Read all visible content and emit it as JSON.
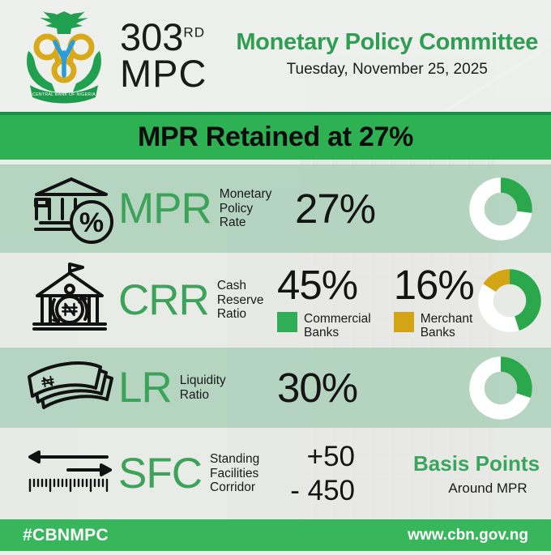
{
  "header": {
    "logo_ribbon": "CENTRAL BANK OF NIGERIA",
    "edition_number": "303",
    "edition_suffix": "RD",
    "edition_label": "MPC",
    "title": "Monetary Policy Committee",
    "date": "Tuesday, November 25, 2025"
  },
  "banner": {
    "text": "MPR Retained at 27%"
  },
  "rows": [
    {
      "acronym": "MPR",
      "label_lines": [
        "Monetary",
        "Policy",
        "Rate"
      ],
      "value": "27%",
      "icon": "bank-percent-icon"
    },
    {
      "acronym": "CRR",
      "label_lines": [
        "Cash",
        "Reserve",
        "Ratio"
      ],
      "items": [
        {
          "value": "45%",
          "legend_lines": [
            "Commercial",
            "Banks"
          ],
          "color": "#2fae55"
        },
        {
          "value": "16%",
          "legend_lines": [
            "Merchant",
            "Banks"
          ],
          "color": "#d3a413"
        }
      ],
      "icon": "bank-naira-cycle-icon"
    },
    {
      "acronym": "LR",
      "label_lines": [
        "Liquidity",
        "Ratio"
      ],
      "value": "30%",
      "icon": "banknotes-icon"
    },
    {
      "acronym": "SFC",
      "label_lines": [
        "Standing",
        "Facilities",
        "Corridor"
      ],
      "upper_value": "+50",
      "lower_value": "- 450",
      "note_title": "Basis Points",
      "note_sub": "Around MPR",
      "icon": "corridor-ruler-icon"
    }
  ],
  "footer": {
    "hashtag": "#CBNMPC",
    "website": "www.cbn.gov.ng"
  },
  "icons": {
    "percent_glyph": "%"
  },
  "colors": {
    "brand_green": "#2eb152",
    "banner_edge_green": "#15914a",
    "heading_green": "#2f9e52",
    "acronym_green": "#3da35a",
    "donut_green": "#2ba84c",
    "legend_green": "#2fae55",
    "legend_gold": "#d3a413",
    "row_green_tint": "#bcd8c6",
    "row_light_tint": "#e8e9e6",
    "footer_green": "#38b65c",
    "text_black": "#161616",
    "white": "#ffffff"
  },
  "chart_data": [
    {
      "type": "pie",
      "subtype": "donut",
      "title": "MPR Monetary Policy Rate 27%",
      "series": [
        {
          "name": "Monetary Policy Rate",
          "value": 27,
          "color": "#2ba84c"
        },
        {
          "name": "remainder",
          "value": 73,
          "color": "#ffffff"
        }
      ]
    },
    {
      "type": "pie",
      "subtype": "donut",
      "title": "CRR Cash Reserve Ratio: Commercial Banks 45%, Merchant Banks 16%",
      "series": [
        {
          "name": "Commercial Banks",
          "value": 45,
          "color": "#2ba84c"
        },
        {
          "name": "remainder",
          "value": 39,
          "color": "#ffffff"
        },
        {
          "name": "Merchant Banks",
          "value": 16,
          "color": "#d3a413"
        }
      ]
    },
    {
      "type": "pie",
      "subtype": "donut",
      "title": "LR Liquidity Ratio 30%",
      "series": [
        {
          "name": "Liquidity Ratio",
          "value": 30,
          "color": "#2ba84c"
        },
        {
          "name": "remainder",
          "value": 70,
          "color": "#ffffff"
        }
      ]
    }
  ]
}
